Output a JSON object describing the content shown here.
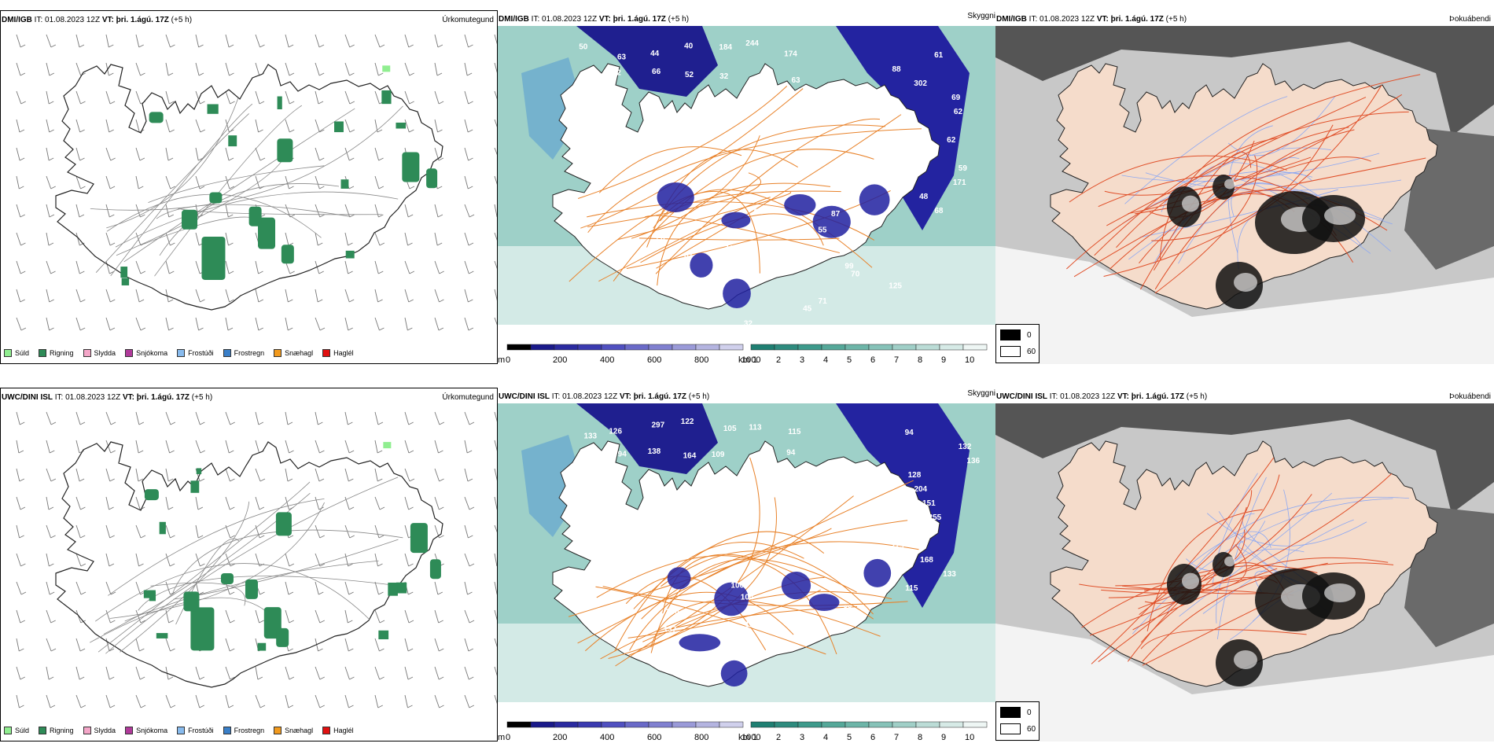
{
  "rows": [
    {
      "precip": {
        "model": "DMI/IGB",
        "it_label": "IT:",
        "it_value": "01.08.2023 12Z",
        "vt_label": "VT:",
        "vt_value": "þri. 1.ágú. 17Z",
        "offset": "(+5 h)",
        "type": "Úrkomutegund"
      },
      "cloud": {
        "model": "DMI/IGB",
        "it_label": "IT:",
        "it_value": "01.08.2023 12Z",
        "vt_label": "VT:",
        "vt_value": "þri. 1.ágú. 17Z",
        "offset": "(+5 h)",
        "type": "Skyggni",
        "labels": [
          "50",
          "63",
          "44",
          "40",
          "184",
          "244",
          "174",
          "62",
          "12",
          "66",
          "52",
          "32",
          "83",
          "63",
          "61",
          "88",
          "302",
          "69",
          "62",
          "63",
          "62",
          "71",
          "59",
          "171",
          "48",
          "68",
          "61",
          "87",
          "55",
          "59",
          "74",
          "87",
          "99",
          "70",
          "125",
          "74",
          "71",
          "45",
          "32"
        ]
      },
      "fog": {
        "model": "DMI/IGB",
        "it_label": "IT:",
        "it_value": "01.08.2023 12Z",
        "vt_label": "VT:",
        "vt_value": "þri. 1.ágú. 17Z",
        "offset": "(+5 h)",
        "type": "Þokuábendi"
      }
    },
    {
      "precip": {
        "model": "UWC/DINI ISL",
        "it_label": "IT:",
        "it_value": "01.08.2023 12Z",
        "vt_label": "VT:",
        "vt_value": "þri. 1.ágú. 17Z",
        "offset": "(+5 h)",
        "type": "Úrkomutegund"
      },
      "cloud": {
        "model": "UWC/DINI ISL",
        "it_label": "IT:",
        "it_value": "01.08.2023 12Z",
        "vt_label": "VT:",
        "vt_value": "þri. 1.ágú. 17Z",
        "offset": "(+5 h)",
        "type": "Skyggni",
        "labels": [
          "133",
          "126",
          "297",
          "122",
          "105",
          "113",
          "115",
          "112",
          "94",
          "138",
          "164",
          "109",
          "122",
          "94",
          "94",
          "132",
          "136",
          "128",
          "204",
          "151",
          "255",
          "260",
          "229",
          "168",
          "133",
          "115",
          "100",
          "104",
          "88",
          "100",
          "124",
          "137"
        ]
      },
      "fog": {
        "model": "UWC/DINI ISL",
        "it_label": "IT:",
        "it_value": "01.08.2023 12Z",
        "vt_label": "VT:",
        "vt_value": "þri. 1.ágú. 17Z",
        "offset": "(+5 h)",
        "type": "Þokuábendi"
      }
    }
  ],
  "precip_legend": [
    {
      "label": "Súld",
      "color": "#90ee90"
    },
    {
      "label": "Rigning",
      "color": "#2e8b57"
    },
    {
      "label": "Slydda",
      "color": "#f4a6c8"
    },
    {
      "label": "Snjókoma",
      "color": "#b03a9a"
    },
    {
      "label": "Frostúði",
      "color": "#88bbee"
    },
    {
      "label": "Frostregn",
      "color": "#3a7fc8"
    },
    {
      "label": "Snæhagl",
      "color": "#f29a1d"
    },
    {
      "label": "Haglél",
      "color": "#e01010"
    }
  ],
  "cloud_scale": {
    "m_unit": "m",
    "m_ticks": [
      "0",
      "200",
      "400",
      "600",
      "800",
      "1000"
    ],
    "m_colors": [
      "#000000",
      "#1a1a8a",
      "#2a2aa0",
      "#3a3ab0",
      "#5050c0",
      "#6a6ac8",
      "#8080d0",
      "#9a9ad8",
      "#b4b4e0",
      "#d0d0ec"
    ],
    "km_unit": "km",
    "km_ticks": [
      "1",
      "2",
      "3",
      "4",
      "5",
      "6",
      "7",
      "8",
      "9",
      "10"
    ],
    "km_colors": [
      "#1f7f72",
      "#2e8b7e",
      "#3d9a8b",
      "#55a899",
      "#6db5a8",
      "#86c2b8",
      "#a0cfc7",
      "#bbdcd6",
      "#d6eae6",
      "#eef6f4"
    ]
  },
  "fog_legend": {
    "black_value": "0",
    "white_value": "60"
  }
}
